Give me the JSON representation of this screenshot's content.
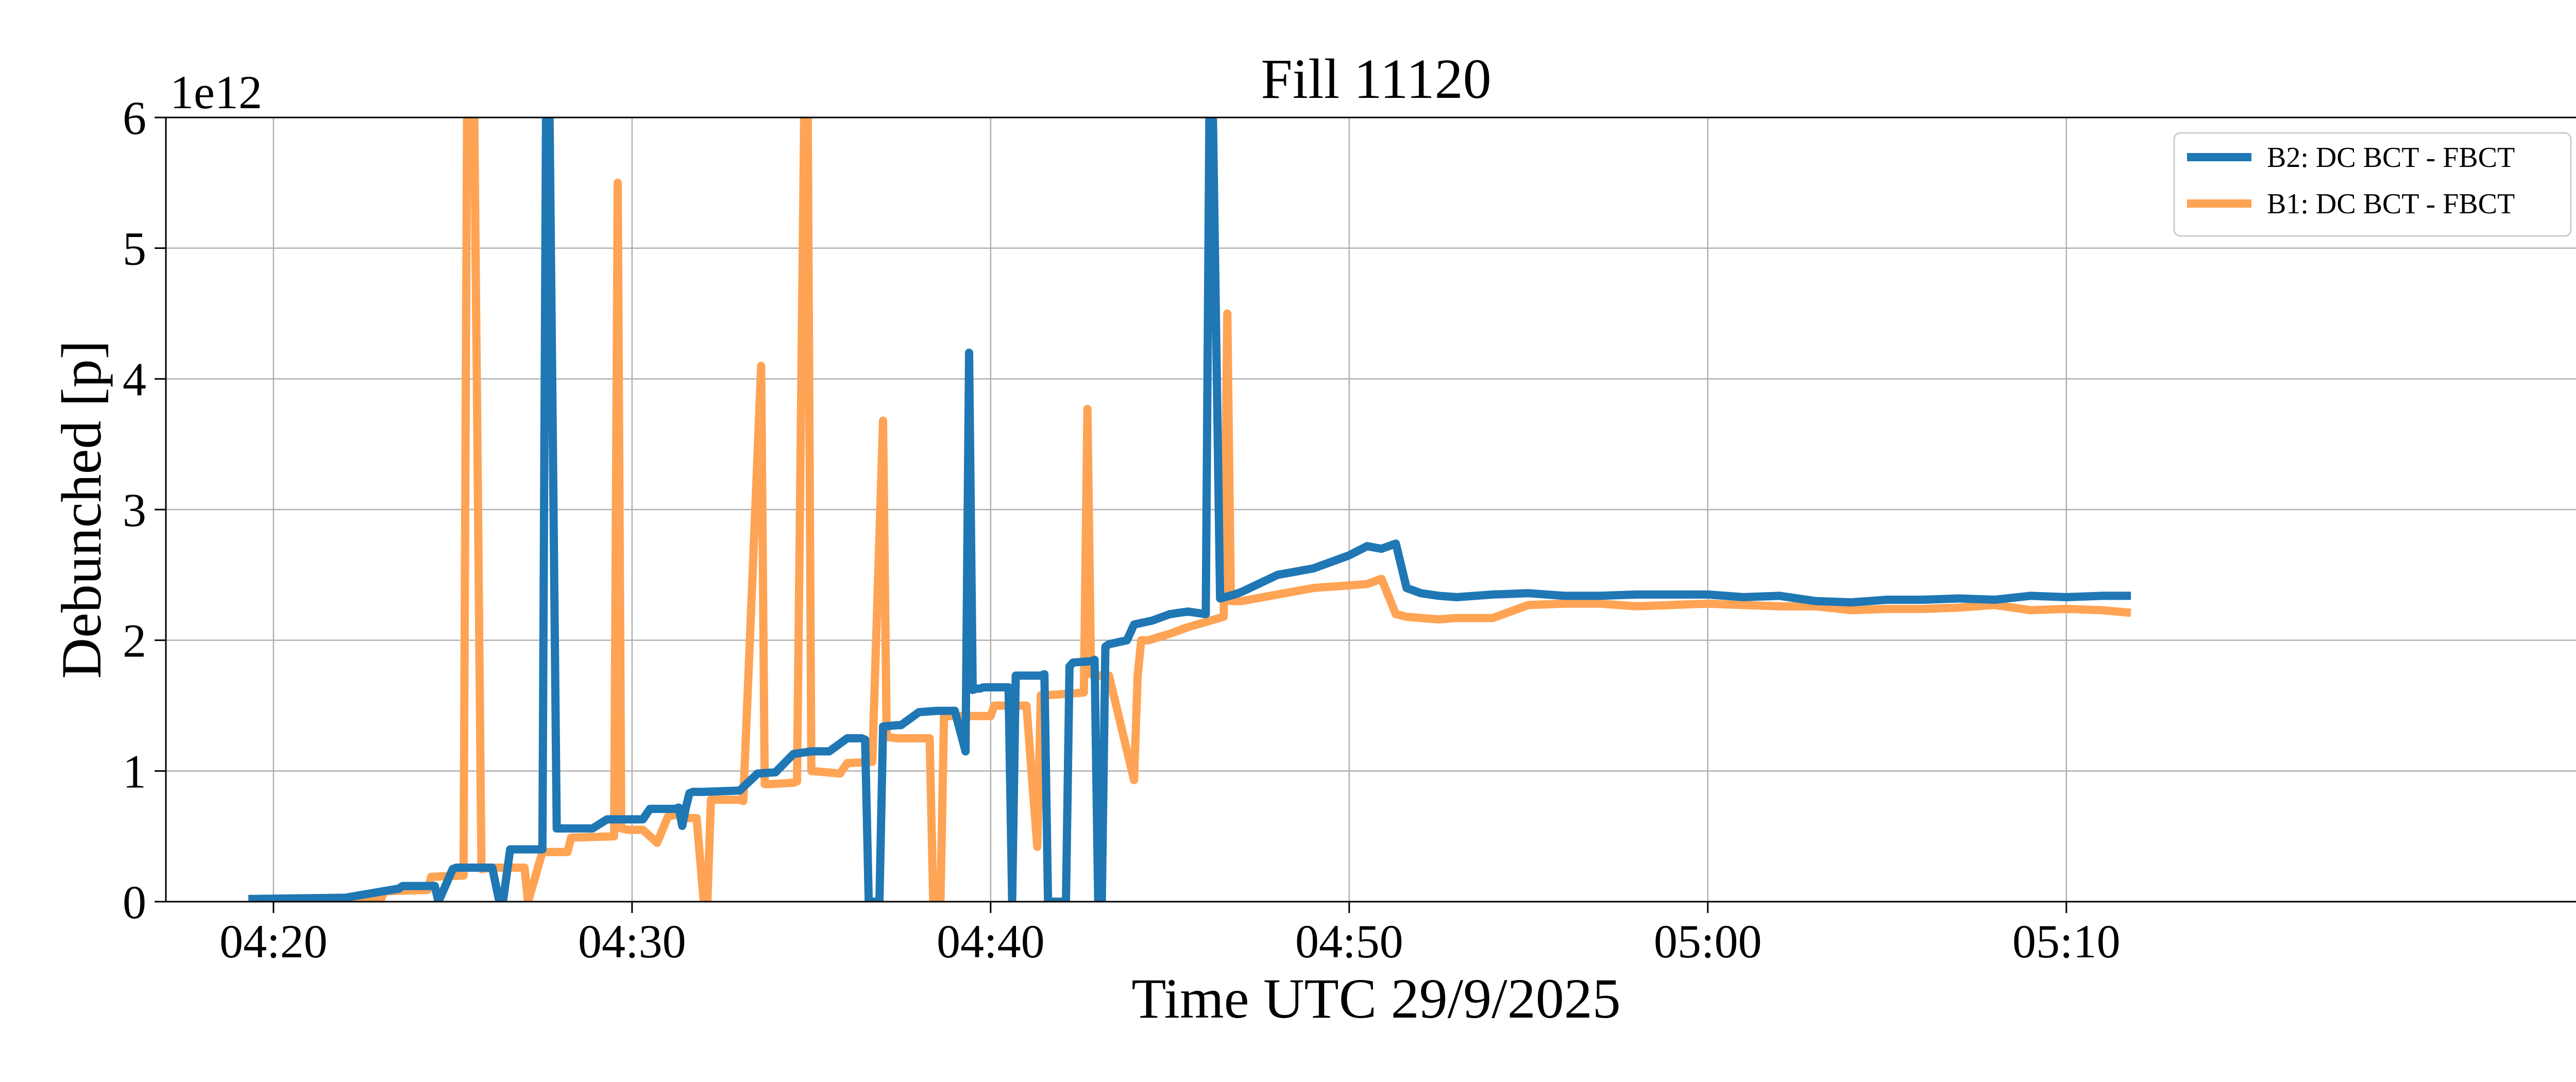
{
  "chart_data": {
    "type": "line",
    "title": "Fill 11120",
    "xlabel": "Time UTC 29/9/2025",
    "ylabel": "Debunched [p]",
    "y_exponent_label": "1e12",
    "xlim": [
      257,
      324.5
    ],
    "ylim": [
      0,
      6
    ],
    "x_unit": "minutes after 00:00 UTC",
    "x_ticks": [
      {
        "value": 260,
        "label": "04:20"
      },
      {
        "value": 270,
        "label": "04:30"
      },
      {
        "value": 280,
        "label": "04:40"
      },
      {
        "value": 290,
        "label": "04:50"
      },
      {
        "value": 300,
        "label": "05:00"
      },
      {
        "value": 310,
        "label": "05:10"
      }
    ],
    "y_ticks": [
      {
        "value": 0,
        "label": "0"
      },
      {
        "value": 1,
        "label": "1"
      },
      {
        "value": 2,
        "label": "2"
      },
      {
        "value": 3,
        "label": "3"
      },
      {
        "value": 4,
        "label": "4"
      },
      {
        "value": 5,
        "label": "5"
      },
      {
        "value": 6,
        "label": "6"
      }
    ],
    "grid": true,
    "legend_position": "top-right",
    "series": [
      {
        "name": "B2: DC BCT - FBCT",
        "color": "#1f77b4",
        "x": [
          259.3,
          262.0,
          263.5,
          263.6,
          264.5,
          264.6,
          265.0,
          265.1,
          266.1,
          266.3,
          266.4,
          266.6,
          267.5,
          267.6,
          267.7,
          267.9,
          268.3,
          268.9,
          269.3,
          270.1,
          270.3,
          270.5,
          271.2,
          271.3,
          271.4,
          271.5,
          271.6,
          271.7,
          272.0,
          273.0,
          273.5,
          274.0,
          274.5,
          275.0,
          275.5,
          276.0,
          276.4,
          276.5,
          276.6,
          276.9,
          277.0,
          277.4,
          277.5,
          278.0,
          278.5,
          279.0,
          279.3,
          279.4,
          279.5,
          279.6,
          279.7,
          279.8,
          280.5,
          280.6,
          280.7,
          281.4,
          281.5,
          281.6,
          282.1,
          282.2,
          282.3,
          282.8,
          282.9,
          283.0,
          283.1,
          283.2,
          283.3,
          283.8,
          284.0,
          284.5,
          285.0,
          285.5,
          286.0,
          286.1,
          286.2,
          286.4,
          286.8,
          287.0,
          288.0,
          289.0,
          290.0,
          290.5,
          290.9,
          291.3,
          291.6,
          292.0,
          292.5,
          293.0,
          294.0,
          295.0,
          296.0,
          297.0,
          298.0,
          299.0,
          300.0,
          301.0,
          302.0,
          303.0,
          304.0,
          305.0,
          306.0,
          307.0,
          308.0,
          309.0,
          310.0,
          311.0,
          311.8
        ],
        "values": [
          0.02,
          0.03,
          0.1,
          0.12,
          0.12,
          0.0,
          0.25,
          0.26,
          0.26,
          0.0,
          0.0,
          0.4,
          0.4,
          6.0,
          6.0,
          0.56,
          0.56,
          0.56,
          0.63,
          0.63,
          0.63,
          0.71,
          0.71,
          0.72,
          0.58,
          0.72,
          0.83,
          0.84,
          0.84,
          0.85,
          0.98,
          0.99,
          1.13,
          1.15,
          1.15,
          1.25,
          1.25,
          1.24,
          0.0,
          0.0,
          1.34,
          1.35,
          1.35,
          1.45,
          1.46,
          1.46,
          1.15,
          4.2,
          1.62,
          1.63,
          1.63,
          1.64,
          1.64,
          0.0,
          1.73,
          1.73,
          1.74,
          0.0,
          0.0,
          1.8,
          1.83,
          1.84,
          1.85,
          0.0,
          0.0,
          1.95,
          1.97,
          2.0,
          2.12,
          2.15,
          2.2,
          2.22,
          2.2,
          6.0,
          6.0,
          2.32,
          2.35,
          2.37,
          2.5,
          2.55,
          2.65,
          2.72,
          2.7,
          2.74,
          2.4,
          2.36,
          2.34,
          2.33,
          2.35,
          2.36,
          2.34,
          2.34,
          2.35,
          2.35,
          2.35,
          2.33,
          2.34,
          2.3,
          2.29,
          2.31,
          2.31,
          2.32,
          2.31,
          2.34,
          2.33,
          2.34,
          2.34
        ]
      },
      {
        "name": "B1: DC BCT - FBCT",
        "color": "#ffa354",
        "x": [
          259.3,
          261.5,
          263.0,
          263.1,
          264.3,
          264.4,
          265.3,
          265.4,
          265.6,
          265.8,
          266.1,
          267.0,
          267.1,
          267.5,
          267.9,
          268.2,
          268.3,
          269.5,
          269.6,
          269.7,
          269.9,
          270.1,
          270.3,
          270.7,
          271.0,
          271.3,
          271.5,
          271.8,
          272.0,
          272.1,
          272.2,
          272.3,
          272.4,
          273.0,
          273.1,
          273.6,
          273.7,
          273.9,
          274.5,
          274.6,
          274.8,
          274.9,
          275.0,
          275.8,
          276.0,
          276.7,
          277.0,
          277.1,
          277.4,
          277.5,
          278.0,
          278.3,
          278.4,
          278.6,
          278.7,
          279.0,
          280.0,
          280.1,
          281.0,
          281.3,
          281.4,
          281.5,
          281.6,
          282.6,
          282.7,
          282.8,
          283.0,
          283.2,
          283.3,
          284.0,
          284.1,
          284.2,
          284.4,
          285.0,
          285.5,
          286.5,
          286.6,
          286.7,
          286.8,
          287.0,
          288.0,
          289.0,
          290.0,
          290.5,
          290.9,
          291.3,
          291.6,
          292.0,
          292.5,
          293.0,
          294.0,
          295.0,
          296.0,
          297.0,
          298.0,
          299.0,
          300.0,
          301.0,
          302.0,
          303.0,
          304.0,
          305.0,
          306.0,
          307.0,
          308.0,
          309.0,
          310.0,
          311.0,
          311.8
        ],
        "values": [
          0.02,
          0.02,
          0.02,
          0.08,
          0.09,
          0.19,
          0.2,
          6.0,
          6.0,
          0.25,
          0.26,
          0.26,
          0.0,
          0.38,
          0.38,
          0.38,
          0.49,
          0.5,
          5.5,
          0.56,
          0.55,
          0.55,
          0.55,
          0.45,
          0.65,
          0.67,
          0.64,
          0.64,
          0.0,
          0.0,
          0.78,
          0.78,
          0.78,
          0.78,
          0.77,
          4.1,
          0.9,
          0.9,
          0.91,
          0.92,
          6.0,
          6.0,
          1.0,
          0.98,
          1.06,
          1.07,
          3.68,
          1.26,
          1.25,
          1.25,
          1.25,
          1.25,
          0.0,
          0.0,
          1.42,
          1.42,
          1.42,
          1.5,
          1.5,
          0.42,
          1.58,
          1.58,
          1.58,
          1.6,
          3.77,
          1.74,
          1.73,
          1.73,
          1.73,
          0.93,
          1.73,
          2.0,
          2.0,
          2.05,
          2.1,
          2.18,
          4.5,
          2.3,
          2.3,
          2.3,
          2.35,
          2.4,
          2.42,
          2.43,
          2.47,
          2.2,
          2.18,
          2.17,
          2.16,
          2.17,
          2.17,
          2.27,
          2.28,
          2.28,
          2.26,
          2.27,
          2.28,
          2.27,
          2.26,
          2.26,
          2.23,
          2.24,
          2.24,
          2.25,
          2.27,
          2.23,
          2.24,
          2.23,
          2.21
        ]
      }
    ]
  }
}
